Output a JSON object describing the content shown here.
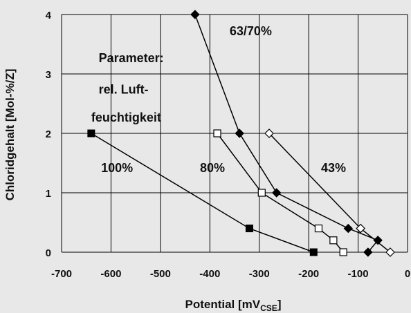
{
  "chart_data": {
    "type": "line",
    "xlabel": "Potential [mV",
    "xlabel_sub": "CSE",
    "xlabel_end": "]",
    "ylabel": "Chloridgehalt [Mol-%/Z]",
    "xlim": [
      -700,
      0
    ],
    "ylim": [
      0,
      4
    ],
    "x_ticks": [
      -700,
      -600,
      -500,
      -400,
      -300,
      -200,
      -100,
      0
    ],
    "x_tick_labels": [
      "-700",
      "-600",
      "-500",
      "-400",
      "-300",
      "-200",
      "-100",
      "0"
    ],
    "y_ticks": [
      0,
      1,
      2,
      3,
      4
    ],
    "y_tick_labels": [
      "0",
      "1",
      "2",
      "3",
      "4"
    ],
    "grid": true,
    "series": [
      {
        "name": "100%",
        "marker": "filled-square",
        "x": [
          -640,
          -320,
          -190
        ],
        "y": [
          2.0,
          0.4,
          0.0
        ]
      },
      {
        "name": "80%",
        "marker": "open-square",
        "x": [
          -385,
          -295,
          -180,
          -150,
          -130
        ],
        "y": [
          2.0,
          1.0,
          0.4,
          0.2,
          0.0
        ]
      },
      {
        "name": "63/70%",
        "marker": "filled-diamond",
        "x": [
          -430,
          -340,
          -265,
          -120,
          -60,
          -80
        ],
        "y": [
          4.0,
          2.0,
          1.0,
          0.4,
          0.2,
          0.0
        ]
      },
      {
        "name": "43%",
        "marker": "open-diamond",
        "x": [
          -280,
          -95,
          -35
        ],
        "y": [
          2.0,
          0.4,
          0.0
        ]
      }
    ],
    "annotations": [
      {
        "text": "Parameter:",
        "x": -625,
        "y": 3.2
      },
      {
        "text": "rel. Luft-",
        "x": -625,
        "y": 2.67
      },
      {
        "text": "feuchtigkeit",
        "x": -640,
        "y": 2.2
      },
      {
        "text": "63/70%",
        "x": -360,
        "y": 3.65
      },
      {
        "text": "100%",
        "x": -620,
        "y": 1.35
      },
      {
        "text": "80%",
        "x": -420,
        "y": 1.35
      },
      {
        "text": "43%",
        "x": -175,
        "y": 1.35
      }
    ]
  }
}
